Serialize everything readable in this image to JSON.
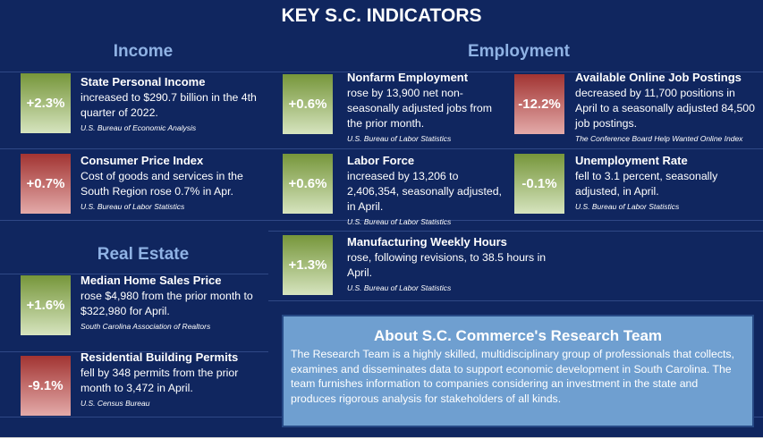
{
  "title": "KEY S.C. INDICATORS",
  "sections": {
    "income": "Income",
    "employment": "Employment",
    "real_estate": "Real Estate"
  },
  "colors": {
    "background": "#10265f",
    "positive": "#76963a",
    "negative": "#a23432",
    "about_bg": "#6f9fd0"
  },
  "indicators": [
    {
      "value": "+2.3%",
      "title": "State Personal Income",
      "desc": "increased to $290.7 billion in the 4th quarter of 2022.",
      "source": "U.S. Bureau of Economic Analysis",
      "tone": "good"
    },
    {
      "value": "+0.7%",
      "title": "Consumer Price Index",
      "desc": "Cost of goods and services in the South Region rose 0.7% in Apr.",
      "source": "U.S. Bureau of Labor Statistics",
      "tone": "bad"
    },
    {
      "value": "+1.6%",
      "title": "Median Home Sales Price",
      "desc": "rose $4,980 from the prior month to $322,980 for April.",
      "source": "South Carolina Association of Realtors",
      "tone": "good"
    },
    {
      "value": "-9.1%",
      "title": "Residential Building Permits",
      "desc": "fell by 348 permits from the prior month to 3,472 in April.",
      "source": "U.S. Census Bureau",
      "tone": "bad"
    },
    {
      "value": "+0.6%",
      "title": "Nonfarm Employment",
      "desc": "rose by 13,900 net non-seasonally adjusted jobs from the prior month.",
      "source": "U.S. Bureau of Labor Statistics",
      "tone": "good"
    },
    {
      "value": "+0.6%",
      "title": "Labor Force",
      "desc": "increased by 13,206 to 2,406,354, seasonally adjusted, in April.",
      "source": "U.S. Bureau of Labor Statistics",
      "tone": "good"
    },
    {
      "value": "+1.3%",
      "title": "Manufacturing Weekly Hours",
      "desc": "rose, following revisions, to 38.5 hours in April.",
      "source": "U.S. Bureau of Labor Statistics",
      "tone": "good"
    },
    {
      "value": "-12.2%",
      "title": "Available Online Job Postings",
      "desc": "decreased by 11,700 positions in April to a seasonally adjusted 84,500 job postings.",
      "source": "The Conference Board Help Wanted Online Index",
      "tone": "bad"
    },
    {
      "value": "-0.1%",
      "title": "Unemployment Rate",
      "desc": "fell to 3.1 percent, seasonally adjusted, in April.",
      "source": "U.S. Bureau of Labor Statistics",
      "tone": "good"
    }
  ],
  "about": {
    "title": "About S.C. Commerce's Research Team",
    "body": "The Research Team is a highly skilled, multidisciplinary group of professionals that collects, examines and disseminates data to support economic development in South Carolina. The team furnishes information to companies considering an investment in the state and produces rigorous analysis for stakeholders of all kinds."
  }
}
